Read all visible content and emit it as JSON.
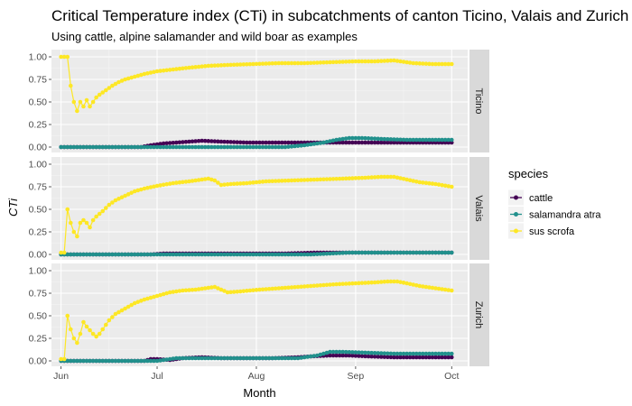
{
  "chart_data": {
    "type": "line",
    "title": "Critical Temperature index (CTi) in subcatchments of canton Ticino, Valais and Zurich",
    "subtitle": "Using cattle, alpine salamander and wild boar as examples",
    "xlabel": "Month",
    "ylabel": "CTi",
    "x_tick_labels": [
      "Jun",
      "Jul",
      "Aug",
      "Sep",
      "Oct"
    ],
    "x_tick_days": [
      0,
      30,
      61,
      92,
      122
    ],
    "ylim": [
      0,
      1
    ],
    "y_ticks": [
      0.0,
      0.25,
      0.5,
      0.75,
      1.0
    ],
    "y_tick_labels": [
      "0.00",
      "0.25",
      "0.50",
      "0.75",
      "1.00"
    ],
    "grid": true,
    "legend": {
      "title": "species",
      "position": "right",
      "entries": [
        {
          "name": "cattle",
          "color": "#440154"
        },
        {
          "name": "salamandra atra",
          "color": "#21908C"
        },
        {
          "name": "sus scrofa",
          "color": "#FDE725"
        }
      ]
    },
    "facets": [
      {
        "name": "Ticino",
        "series": [
          {
            "name": "cattle",
            "points": [
              [
                0,
                0
              ],
              [
                25,
                0
              ],
              [
                28,
                0.02
              ],
              [
                32,
                0.04
              ],
              [
                36,
                0.05
              ],
              [
                40,
                0.06
              ],
              [
                44,
                0.07
              ],
              [
                50,
                0.06
              ],
              [
                58,
                0.05
              ],
              [
                66,
                0.05
              ],
              [
                74,
                0.05
              ],
              [
                80,
                0.05
              ],
              [
                88,
                0.05
              ],
              [
                96,
                0.05
              ],
              [
                104,
                0.05
              ],
              [
                112,
                0.05
              ],
              [
                120,
                0.05
              ],
              [
                122,
                0.05
              ]
            ]
          },
          {
            "name": "salamandra atra",
            "points": [
              [
                0,
                0
              ],
              [
                50,
                0
              ],
              [
                60,
                0
              ],
              [
                70,
                0
              ],
              [
                76,
                0.02
              ],
              [
                82,
                0.05
              ],
              [
                86,
                0.08
              ],
              [
                90,
                0.1
              ],
              [
                94,
                0.1
              ],
              [
                100,
                0.09
              ],
              [
                108,
                0.08
              ],
              [
                116,
                0.08
              ],
              [
                122,
                0.08
              ]
            ]
          },
          {
            "name": "sus scrofa",
            "points": [
              [
                0,
                1.0
              ],
              [
                2,
                1.0
              ],
              [
                3,
                0.68
              ],
              [
                4,
                0.5
              ],
              [
                5,
                0.4
              ],
              [
                6,
                0.5
              ],
              [
                7,
                0.45
              ],
              [
                8,
                0.52
              ],
              [
                9,
                0.45
              ],
              [
                10,
                0.5
              ],
              [
                11,
                0.55
              ],
              [
                12,
                0.58
              ],
              [
                14,
                0.63
              ],
              [
                16,
                0.68
              ],
              [
                18,
                0.72
              ],
              [
                20,
                0.75
              ],
              [
                23,
                0.78
              ],
              [
                26,
                0.81
              ],
              [
                30,
                0.84
              ],
              [
                35,
                0.86
              ],
              [
                40,
                0.88
              ],
              [
                46,
                0.9
              ],
              [
                52,
                0.91
              ],
              [
                60,
                0.92
              ],
              [
                68,
                0.93
              ],
              [
                76,
                0.93
              ],
              [
                84,
                0.94
              ],
              [
                92,
                0.95
              ],
              [
                98,
                0.95
              ],
              [
                104,
                0.96
              ],
              [
                106,
                0.95
              ],
              [
                110,
                0.93
              ],
              [
                116,
                0.92
              ],
              [
                122,
                0.92
              ]
            ]
          }
        ]
      },
      {
        "name": "Valais",
        "series": [
          {
            "name": "cattle",
            "points": [
              [
                0,
                0
              ],
              [
                28,
                0
              ],
              [
                32,
                0.01
              ],
              [
                40,
                0.01
              ],
              [
                50,
                0.01
              ],
              [
                60,
                0.01
              ],
              [
                70,
                0.01
              ],
              [
                80,
                0.02
              ],
              [
                90,
                0.02
              ],
              [
                100,
                0.02
              ],
              [
                110,
                0.02
              ],
              [
                122,
                0.02
              ]
            ]
          },
          {
            "name": "salamandra atra",
            "points": [
              [
                0,
                0
              ],
              [
                60,
                0
              ],
              [
                70,
                0
              ],
              [
                78,
                0
              ],
              [
                84,
                0.01
              ],
              [
                90,
                0.02
              ],
              [
                100,
                0.02
              ],
              [
                110,
                0.02
              ],
              [
                122,
                0.02
              ]
            ]
          },
          {
            "name": "sus scrofa",
            "points": [
              [
                0,
                0.02
              ],
              [
                1,
                0.02
              ],
              [
                2,
                0.5
              ],
              [
                3,
                0.35
              ],
              [
                4,
                0.25
              ],
              [
                5,
                0.2
              ],
              [
                6,
                0.35
              ],
              [
                7,
                0.38
              ],
              [
                8,
                0.35
              ],
              [
                9,
                0.3
              ],
              [
                10,
                0.38
              ],
              [
                11,
                0.42
              ],
              [
                13,
                0.48
              ],
              [
                15,
                0.55
              ],
              [
                17,
                0.6
              ],
              [
                20,
                0.65
              ],
              [
                23,
                0.7
              ],
              [
                26,
                0.73
              ],
              [
                30,
                0.76
              ],
              [
                35,
                0.79
              ],
              [
                40,
                0.81
              ],
              [
                44,
                0.83
              ],
              [
                46,
                0.84
              ],
              [
                48,
                0.82
              ],
              [
                50,
                0.77
              ],
              [
                53,
                0.78
              ],
              [
                58,
                0.79
              ],
              [
                64,
                0.81
              ],
              [
                72,
                0.82
              ],
              [
                80,
                0.83
              ],
              [
                88,
                0.84
              ],
              [
                95,
                0.85
              ],
              [
                100,
                0.86
              ],
              [
                104,
                0.86
              ],
              [
                108,
                0.83
              ],
              [
                112,
                0.8
              ],
              [
                117,
                0.78
              ],
              [
                122,
                0.75
              ]
            ]
          }
        ]
      },
      {
        "name": "Zurich",
        "series": [
          {
            "name": "cattle",
            "points": [
              [
                0,
                0
              ],
              [
                26,
                0
              ],
              [
                28,
                0.02
              ],
              [
                30,
                0.02
              ],
              [
                34,
                0.01
              ],
              [
                38,
                0.03
              ],
              [
                44,
                0.04
              ],
              [
                50,
                0.03
              ],
              [
                58,
                0.03
              ],
              [
                66,
                0.03
              ],
              [
                74,
                0.04
              ],
              [
                78,
                0.05
              ],
              [
                84,
                0.06
              ],
              [
                90,
                0.06
              ],
              [
                96,
                0.05
              ],
              [
                104,
                0.04
              ],
              [
                112,
                0.04
              ],
              [
                122,
                0.04
              ]
            ]
          },
          {
            "name": "salamandra atra",
            "points": [
              [
                0,
                0
              ],
              [
                30,
                0
              ],
              [
                36,
                0.03
              ],
              [
                44,
                0.03
              ],
              [
                52,
                0.03
              ],
              [
                60,
                0.03
              ],
              [
                68,
                0.03
              ],
              [
                74,
                0.03
              ],
              [
                80,
                0.06
              ],
              [
                84,
                0.1
              ],
              [
                88,
                0.1
              ],
              [
                96,
                0.09
              ],
              [
                104,
                0.08
              ],
              [
                112,
                0.08
              ],
              [
                122,
                0.08
              ]
            ]
          },
          {
            "name": "sus scrofa",
            "points": [
              [
                0,
                0.02
              ],
              [
                1,
                0.02
              ],
              [
                2,
                0.5
              ],
              [
                3,
                0.35
              ],
              [
                4,
                0.25
              ],
              [
                5,
                0.2
              ],
              [
                6,
                0.3
              ],
              [
                7,
                0.43
              ],
              [
                8,
                0.38
              ],
              [
                9,
                0.34
              ],
              [
                10,
                0.3
              ],
              [
                11,
                0.27
              ],
              [
                12,
                0.3
              ],
              [
                13,
                0.35
              ],
              [
                15,
                0.45
              ],
              [
                17,
                0.52
              ],
              [
                20,
                0.58
              ],
              [
                23,
                0.64
              ],
              [
                26,
                0.68
              ],
              [
                30,
                0.72
              ],
              [
                34,
                0.76
              ],
              [
                38,
                0.78
              ],
              [
                42,
                0.79
              ],
              [
                46,
                0.81
              ],
              [
                48,
                0.82
              ],
              [
                50,
                0.79
              ],
              [
                52,
                0.76
              ],
              [
                56,
                0.77
              ],
              [
                62,
                0.79
              ],
              [
                70,
                0.81
              ],
              [
                78,
                0.83
              ],
              [
                86,
                0.85
              ],
              [
                92,
                0.86
              ],
              [
                98,
                0.87
              ],
              [
                102,
                0.88
              ],
              [
                105,
                0.88
              ],
              [
                108,
                0.86
              ],
              [
                112,
                0.83
              ],
              [
                116,
                0.81
              ],
              [
                120,
                0.79
              ],
              [
                122,
                0.78
              ]
            ]
          }
        ]
      }
    ]
  }
}
